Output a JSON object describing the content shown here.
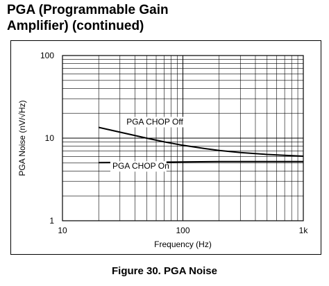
{
  "page": {
    "heading_line1": "PGA (Programmable Gain",
    "heading_line2": "Amplifier) (continued)",
    "caption": "Figure 30.  PGA Noise"
  },
  "chart_data": {
    "type": "line",
    "title": "",
    "xlabel": "Frequency (Hz)",
    "ylabel": "PGA Noise (nV/√Hz)",
    "xscale": "log",
    "yscale": "log",
    "xlim": [
      10,
      1000
    ],
    "ylim": [
      1,
      100
    ],
    "x_ticks": [
      {
        "value": 10,
        "label": "10"
      },
      {
        "value": 100,
        "label": "100"
      },
      {
        "value": 1000,
        "label": "1k"
      }
    ],
    "y_ticks": [
      {
        "value": 1,
        "label": "1"
      },
      {
        "value": 10,
        "label": "10"
      },
      {
        "value": 100,
        "label": "100"
      }
    ],
    "grid": true,
    "line_color": "#000000",
    "series": [
      {
        "name": "PGA CHOP Off",
        "x": [
          20,
          30,
          50,
          70,
          100,
          150,
          200,
          300,
          500,
          700,
          1000
        ],
        "y": [
          13.5,
          11.8,
          10.0,
          9.0,
          8.2,
          7.5,
          7.1,
          6.7,
          6.35,
          6.2,
          6.05
        ]
      },
      {
        "name": "PGA CHOP On",
        "x": [
          20,
          50,
          100,
          200,
          500,
          1000
        ],
        "y": [
          5.05,
          5.1,
          5.15,
          5.2,
          5.2,
          5.2
        ]
      }
    ]
  }
}
